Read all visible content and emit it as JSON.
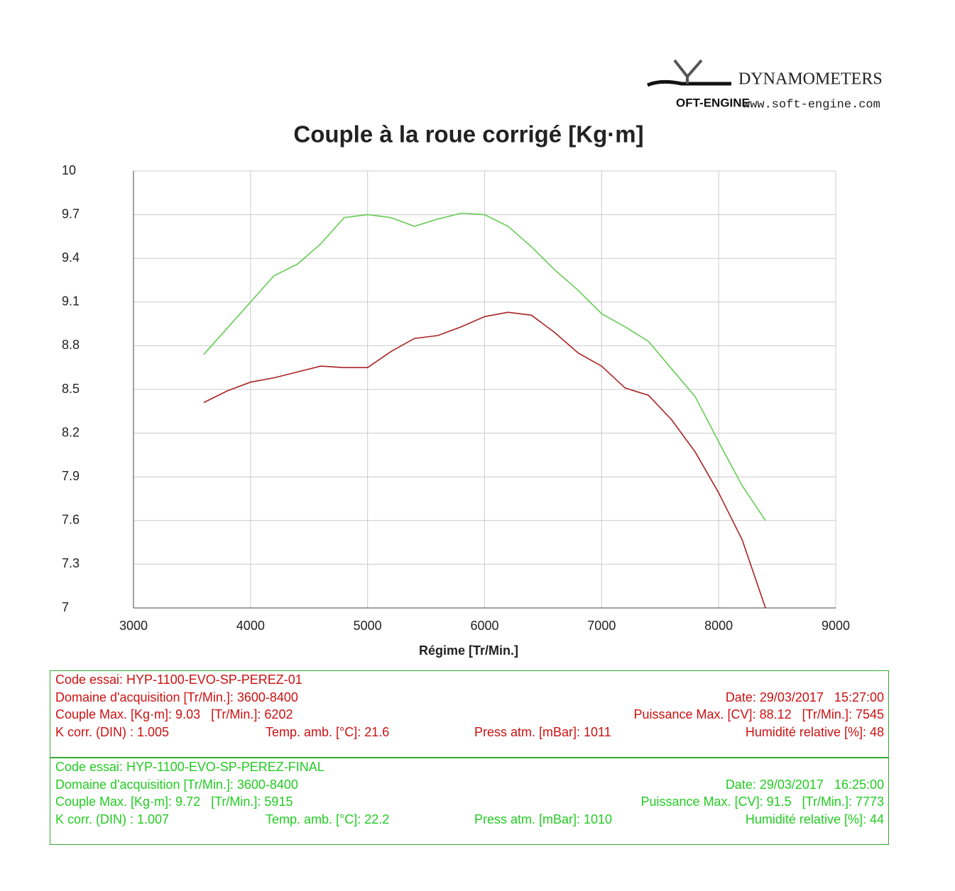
{
  "header": {
    "brand": "DYNAMOMETERS",
    "url": "www.soft-engine.com",
    "logo": "OFT-ENGINE"
  },
  "chart_data": {
    "type": "line",
    "title": "Couple à la roue corrigé [Kg·m]",
    "x_label": "Régime [Tr/Min.]",
    "x": [
      3600,
      3800,
      4000,
      4200,
      4400,
      4600,
      4800,
      5000,
      5200,
      5400,
      5600,
      5800,
      6000,
      6200,
      6400,
      6600,
      6800,
      7000,
      7200,
      7400,
      7600,
      7800,
      8000,
      8200,
      8400
    ],
    "series": [
      {
        "color": "#66cc55",
        "values": [
          8.74,
          8.92,
          9.1,
          9.28,
          9.36,
          9.5,
          9.68,
          9.7,
          9.68,
          9.62,
          9.67,
          9.71,
          9.7,
          9.62,
          9.48,
          9.32,
          9.18,
          9.02,
          8.93,
          8.83,
          8.64,
          8.45,
          8.14,
          7.84,
          7.6
        ]
      },
      {
        "color": "#aa2222",
        "values": [
          8.41,
          8.49,
          8.55,
          8.58,
          8.62,
          8.66,
          8.65,
          8.65,
          8.76,
          8.85,
          8.87,
          8.93,
          9.0,
          9.03,
          9.01,
          8.89,
          8.75,
          8.66,
          8.51,
          8.46,
          8.29,
          8.07,
          7.79,
          7.47,
          7.0
        ]
      }
    ],
    "xlim": [
      3000,
      9000
    ],
    "xticks": [
      3000,
      4000,
      5000,
      6000,
      7000,
      8000,
      9000
    ],
    "ylim": [
      7,
      10
    ],
    "yticks": [
      10,
      9.7,
      9.4,
      9.1,
      8.8,
      8.5,
      8.2,
      7.9,
      7.6,
      7.3,
      7
    ],
    "grid": true
  },
  "panels": [
    {
      "color": "#cc1111",
      "code": "Code essai: HYP-1100-EVO-SP-PEREZ-01",
      "domain": "Domaine d'acquisition [Tr/Min.]: 3600-8400",
      "date": "Date: 29/03/2017   15:27:00",
      "couple": "Couple Max. [Kg·m]: 9.03   [Tr/Min.]: 6202",
      "puissance": "Puissance Max. [CV]: 88.12   [Tr/Min.]: 7545",
      "kcorr": "K corr. (DIN) : 1.005",
      "temp": "Temp. amb. [°C]: 21.6",
      "press": "Press atm. [mBar]: 1011",
      "humid": "Humidité relative [%]: 48"
    },
    {
      "color": "#22cc22",
      "code": "Code essai: HYP-1100-EVO-SP-PEREZ-FINAL",
      "domain": "Domaine d'acquisition [Tr/Min.]: 3600-8400",
      "date": "Date: 29/03/2017   16:25:00",
      "couple": "Couple Max. [Kg·m]: 9.72   [Tr/Min.]: 5915",
      "puissance": "Puissance Max. [CV]: 91.5   [Tr/Min.]: 7773",
      "kcorr": "K corr. (DIN) : 1.007",
      "temp": "Temp. amb. [°C]: 22.2",
      "press": "Press atm. [mBar]: 1010",
      "humid": "Humidité relative [%]: 44"
    }
  ]
}
